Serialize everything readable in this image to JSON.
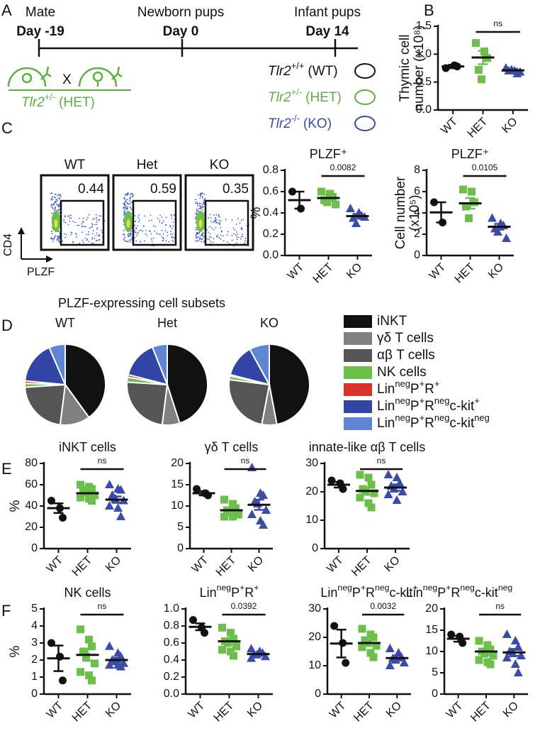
{
  "panel_labels": [
    "A",
    "B",
    "C",
    "D",
    "E",
    "F"
  ],
  "timeline": {
    "events": [
      {
        "label": "Mate",
        "day": "Day -19"
      },
      {
        "label": "Newborn pups",
        "day": "Day 0"
      },
      {
        "label": "Infant pups",
        "day": "Day 14"
      }
    ],
    "cross": "X",
    "parent": {
      "gene": "Tlr2",
      "allele": "+/-",
      "name": "(HET)",
      "color": "#5cb043"
    },
    "offspring": [
      {
        "gene": "Tlr2",
        "allele": "+/+",
        "name": "(WT)",
        "color": "#111111"
      },
      {
        "gene": "Tlr2",
        "allele": "+/-",
        "name": "(HET)",
        "color": "#5cb043"
      },
      {
        "gene": "Tlr2",
        "allele": "-/-",
        "name": "(KO)",
        "color": "#3b4ba8"
      }
    ]
  },
  "flow": {
    "samples": [
      {
        "name": "WT",
        "gate": 0.44
      },
      {
        "name": "Het",
        "gate": 0.59
      },
      {
        "name": "KO",
        "gate": 0.35
      }
    ],
    "y_label": "CD4",
    "x_label": "PLZF"
  },
  "chart_data": [
    {
      "type": "dotplot",
      "y_label": [
        "Thymic cell",
        "number (x10⁸)"
      ],
      "categories": [
        "WT",
        "HET",
        "KO"
      ],
      "colors": [
        "#111111",
        "#6cbf4b",
        "#3b4ba8"
      ],
      "markers": [
        "circle",
        "square",
        "triangle"
      ],
      "values": [
        [
          0.75,
          0.8,
          0.78
        ],
        [
          1.2,
          1.05,
          0.93,
          0.72,
          0.55
        ],
        [
          0.75,
          0.7,
          0.65,
          0.7,
          0.72,
          0.68
        ]
      ],
      "means": [
        0.78,
        0.94,
        0.71
      ],
      "sems": [
        0.03,
        0.12,
        0.03
      ],
      "comparison": "ns",
      "ylim": [
        0,
        1.5
      ],
      "yticks": [
        {
          "value": 0,
          "label": "0.0"
        },
        0.5,
        {
          "value": 1,
          "label": "1.0"
        },
        1.5
      ]
    },
    {
      "type": "dotplot",
      "title": "PLZF⁺",
      "y_label": "%",
      "categories": [
        "WT",
        "HET",
        "KO"
      ],
      "colors": [
        "#111111",
        "#6cbf4b",
        "#3b4ba8"
      ],
      "markers": [
        "circle",
        "square",
        "triangle"
      ],
      "values": [
        [
          0.6,
          0.44
        ],
        [
          0.6,
          0.58,
          0.55,
          0.52,
          0.5,
          0.48
        ],
        [
          0.44,
          0.4,
          0.37,
          0.35,
          0.3,
          0.36
        ]
      ],
      "means": [
        0.52,
        0.54,
        0.37
      ],
      "sems": [
        0.08,
        0.03,
        0.02
      ],
      "comparison": "0.0082",
      "ylim": [
        0,
        0.8
      ],
      "yticks": [
        {
          "value": 0,
          "label": "0.0"
        },
        0.2,
        0.4,
        0.6,
        0.8
      ]
    },
    {
      "type": "dotplot",
      "title": "PLZF⁺",
      "y_label": [
        "Cell number",
        "(x10⁵)"
      ],
      "categories": [
        "WT",
        "HET",
        "KO"
      ],
      "colors": [
        "#111111",
        "#6cbf4b",
        "#3b4ba8"
      ],
      "markers": [
        "circle",
        "square",
        "triangle"
      ],
      "values": [
        [
          5,
          3.1
        ],
        [
          6.2,
          6,
          5,
          4.6,
          3.5
        ],
        [
          3.5,
          3,
          2.8,
          2.5,
          2.2,
          1.6
        ]
      ],
      "means": [
        4.05,
        4.9,
        2.7
      ],
      "sems": [
        0.95,
        0.5,
        0.27
      ],
      "comparison": "0.0105",
      "ylim": [
        0,
        8
      ],
      "yticks": [
        0,
        2,
        4,
        6,
        8
      ]
    },
    {
      "type": "pie",
      "title": "PLZF-expressing cell subsets",
      "categories": [
        [
          {
            "t": "iNKT"
          }
        ],
        [
          {
            "t": "γδ T cells"
          }
        ],
        [
          {
            "t": "αβ T cells"
          }
        ],
        [
          {
            "t": "NK cells"
          }
        ],
        [
          {
            "t": "Lin"
          },
          {
            "sup": "neg"
          },
          {
            "t": "P"
          },
          {
            "sup": "+"
          },
          {
            "t": "R"
          },
          {
            "sup": "+"
          }
        ],
        [
          {
            "t": "Lin"
          },
          {
            "sup": "neg"
          },
          {
            "t": "P"
          },
          {
            "sup": "+"
          },
          {
            "t": "R"
          },
          {
            "sup": "neg"
          },
          {
            "t": "c-kit"
          },
          {
            "sup": "+"
          }
        ],
        [
          {
            "t": "Lin"
          },
          {
            "sup": "neg"
          },
          {
            "t": "P"
          },
          {
            "sup": "+"
          },
          {
            "t": "R"
          },
          {
            "sup": "neg"
          },
          {
            "t": "c-kit"
          },
          {
            "sup": "neg"
          }
        ]
      ],
      "colors": [
        "#111111",
        "#808080",
        "#555555",
        "#6cbf4b",
        "#d9342b",
        "#3346a8",
        "#5f85d4"
      ],
      "series": [
        {
          "name": "WT",
          "values": [
            40,
            12,
            22,
            1.5,
            1,
            17,
            6.5
          ]
        },
        {
          "name": "Het",
          "values": [
            45,
            7,
            24,
            2,
            1,
            15,
            6
          ]
        },
        {
          "name": "KO",
          "values": [
            47,
            6,
            24,
            1.5,
            0.5,
            13,
            8
          ]
        }
      ]
    },
    {
      "type": "dotplot",
      "title": [
        {
          "t": "iNKT cells"
        }
      ],
      "y_label": "%",
      "categories": [
        "WT",
        "HET",
        "KO"
      ],
      "colors": [
        "#111111",
        "#6cbf4b",
        "#3b4ba8"
      ],
      "markers": [
        "circle",
        "square",
        "triangle"
      ],
      "values": [
        [
          45,
          38,
          29
        ],
        [
          60,
          58,
          56,
          55,
          53,
          50,
          48,
          47,
          45
        ],
        [
          60,
          56,
          55,
          50,
          47,
          45,
          40,
          38,
          30
        ]
      ],
      "means": [
        38,
        52,
        46
      ],
      "sems": [
        4.5,
        2,
        3
      ],
      "comparison": "ns",
      "ylim": [
        0,
        80
      ],
      "yticks": [
        0,
        20,
        40,
        60,
        80
      ]
    },
    {
      "type": "dotplot",
      "title": [
        {
          "t": "γδ T cells"
        }
      ],
      "categories": [
        "WT",
        "HET",
        "KO"
      ],
      "colors": [
        "#111111",
        "#6cbf4b",
        "#3b4ba8"
      ],
      "markers": [
        "circle",
        "square",
        "triangle"
      ],
      "values": [
        [
          14,
          13,
          12.5
        ],
        [
          11.5,
          10.5,
          9.5,
          9,
          8.5,
          8,
          7.5,
          7.5
        ],
        [
          19,
          13,
          12.5,
          11,
          10.5,
          9,
          8,
          6.5,
          5.5
        ]
      ],
      "means": [
        13,
        9,
        10.3
      ],
      "sems": [
        0.5,
        0.6,
        1.2
      ],
      "comparison": "ns",
      "ylim": [
        0,
        20
      ],
      "yticks": [
        0,
        5,
        10,
        15,
        20
      ]
    },
    {
      "type": "dotplot",
      "title": [
        {
          "t": "innate-like αβ T cells"
        }
      ],
      "categories": [
        "WT",
        "HET",
        "KO"
      ],
      "colors": [
        "#111111",
        "#6cbf4b",
        "#3b4ba8"
      ],
      "markers": [
        "circle",
        "square",
        "triangle"
      ],
      "values": [
        [
          24,
          23,
          21
        ],
        [
          26,
          25,
          22.5,
          21,
          20,
          19.5,
          18,
          16,
          14.5
        ],
        [
          26,
          25,
          23,
          22,
          21,
          20,
          19,
          17
        ]
      ],
      "means": [
        22.5,
        20.3,
        21.5
      ],
      "sems": [
        1,
        1.2,
        1.1
      ],
      "comparison": "ns",
      "ylim": [
        0,
        30
      ],
      "yticks": [
        0,
        10,
        20,
        30
      ]
    },
    {
      "type": "dotplot",
      "title": [
        {
          "t": "NK cells"
        }
      ],
      "y_label": "%",
      "categories": [
        "WT",
        "HET",
        "KO"
      ],
      "colors": [
        "#111111",
        "#6cbf4b",
        "#3b4ba8"
      ],
      "markers": [
        "circle",
        "square",
        "triangle"
      ],
      "values": [
        [
          3,
          2.2,
          0.8
        ],
        [
          3.8,
          3.2,
          2.8,
          2.5,
          2.2,
          1.8,
          1.3,
          1.1,
          0.8
        ],
        [
          2.8,
          2.4,
          2.2,
          2,
          1.9,
          1.8,
          1.7,
          1.7,
          1.6
        ]
      ],
      "means": [
        2.1,
        2.3,
        2
      ],
      "sems": [
        0.75,
        0.35,
        0.12
      ],
      "comparison": "ns",
      "ylim": [
        0,
        5
      ],
      "yticks": [
        0,
        1,
        2,
        3,
        4,
        5
      ]
    },
    {
      "type": "dotplot",
      "title": [
        {
          "t": "Lin"
        },
        {
          "sup": "neg"
        },
        {
          "t": "P"
        },
        {
          "sup": "+"
        },
        {
          "t": "R"
        },
        {
          "sup": "+"
        }
      ],
      "categories": [
        "WT",
        "HET",
        "KO"
      ],
      "colors": [
        "#111111",
        "#6cbf4b",
        "#3b4ba8"
      ],
      "markers": [
        "circle",
        "square",
        "triangle"
      ],
      "values": [
        [
          0.87,
          0.78,
          0.72
        ],
        [
          0.78,
          0.72,
          0.65,
          0.62,
          0.6,
          0.56,
          0.52,
          0.5,
          0.45
        ],
        [
          0.53,
          0.5,
          0.48,
          0.47,
          0.46,
          0.44,
          0.42
        ]
      ],
      "means": [
        0.79,
        0.62,
        0.47
      ],
      "sems": [
        0.04,
        0.035,
        0.015
      ],
      "comparison": "0.0392",
      "ylim": [
        0,
        1
      ],
      "yticks": [
        {
          "value": 0,
          "label": "0.0"
        },
        0.2,
        0.4,
        0.6,
        0.8,
        {
          "value": 1,
          "label": "1.0"
        }
      ]
    },
    {
      "type": "dotplot",
      "title": [
        {
          "t": "Lin"
        },
        {
          "sup": "neg"
        },
        {
          "t": "P"
        },
        {
          "sup": "+"
        },
        {
          "t": "R"
        },
        {
          "sup": "neg"
        },
        {
          "t": "c-kit"
        },
        {
          "sup": "+"
        }
      ],
      "categories": [
        "WT",
        "HET",
        "KO"
      ],
      "colors": [
        "#111111",
        "#6cbf4b",
        "#3b4ba8"
      ],
      "markers": [
        "circle",
        "square",
        "triangle"
      ],
      "values": [
        [
          24,
          18,
          11
        ],
        [
          23,
          21,
          20,
          19,
          18,
          17,
          16.5,
          14.5,
          13
        ],
        [
          16,
          14.5,
          13,
          12.5,
          12,
          11,
          10
        ]
      ],
      "means": [
        17.8,
        18,
        12.7
      ],
      "sems": [
        4.9,
        1,
        0.9
      ],
      "comparison": "0.0032",
      "ylim": [
        0,
        30
      ],
      "yticks": [
        0,
        10,
        20,
        30
      ]
    },
    {
      "type": "dotplot",
      "title": [
        {
          "t": "Lin"
        },
        {
          "sup": "neg"
        },
        {
          "t": "P"
        },
        {
          "sup": "+"
        },
        {
          "t": "R"
        },
        {
          "sup": "neg"
        },
        {
          "t": "c-kit"
        },
        {
          "sup": "neg"
        }
      ],
      "categories": [
        "WT",
        "HET",
        "KO"
      ],
      "colors": [
        "#111111",
        "#6cbf4b",
        "#3b4ba8"
      ],
      "markers": [
        "circle",
        "square",
        "triangle"
      ],
      "values": [
        [
          14,
          13.5,
          12
        ],
        [
          12.5,
          11.5,
          10.5,
          10,
          9.5,
          9,
          8,
          7.5,
          7
        ],
        [
          14,
          12.5,
          11,
          10,
          9.5,
          9,
          8.5,
          7,
          5
        ]
      ],
      "means": [
        13,
        10,
        9.8
      ],
      "sems": [
        0.7,
        0.7,
        0.8
      ],
      "comparison": "ns",
      "ylim": [
        0,
        20
      ],
      "yticks": [
        0,
        5,
        10,
        15,
        20
      ]
    }
  ]
}
